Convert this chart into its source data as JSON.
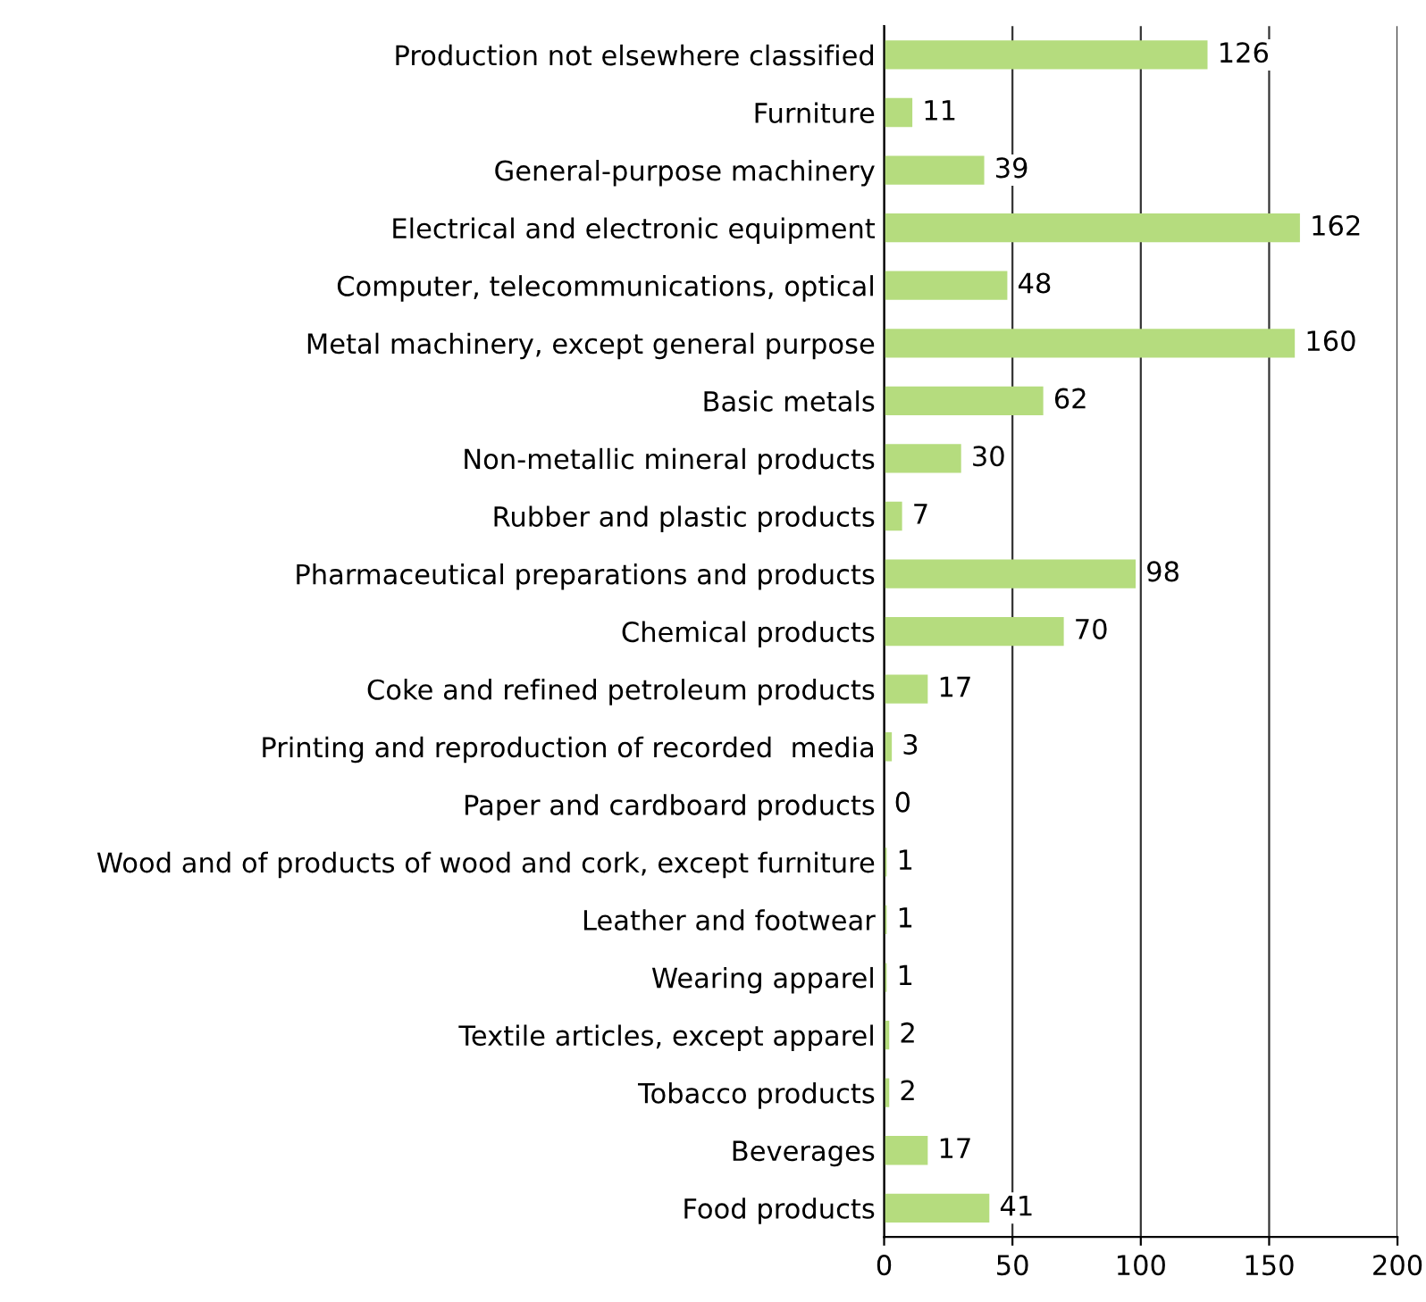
{
  "chart_data": {
    "type": "bar",
    "orientation": "horizontal",
    "categories": [
      "Production not elsewhere classified",
      "Furniture",
      "General-purpose machinery",
      "Electrical and electronic equipment",
      "Computer, telecommunications, optical",
      "Metal machinery, except general purpose",
      "Basic metals",
      "Non-metallic mineral products",
      "Rubber and plastic products",
      "Pharmaceutical preparations and products",
      "Chemical products",
      "Coke and refined petroleum products",
      "Printing and reproduction of recorded  media",
      "Paper and cardboard products",
      "Wood and of products of wood and cork, except furniture",
      "Leather and footwear",
      "Wearing apparel",
      "Textile articles, except apparel",
      "Tobacco products",
      "Beverages",
      "Food products"
    ],
    "values": [
      126,
      11,
      39,
      162,
      48,
      160,
      62,
      30,
      7,
      98,
      70,
      17,
      3,
      0,
      1,
      1,
      1,
      2,
      2,
      17,
      41
    ],
    "color": "#b5dc7e",
    "xlim": [
      0,
      200
    ],
    "xticks": [
      0,
      50,
      100,
      150,
      200
    ],
    "grid": "x",
    "data_labels": true
  }
}
